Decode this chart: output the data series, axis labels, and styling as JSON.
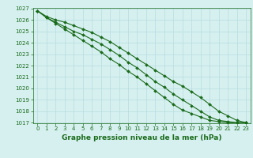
{
  "x": [
    0,
    1,
    2,
    3,
    4,
    5,
    6,
    7,
    8,
    9,
    10,
    11,
    12,
    13,
    14,
    15,
    16,
    17,
    18,
    19,
    20,
    21,
    22,
    23
  ],
  "line_top": [
    1026.8,
    1026.3,
    1026.0,
    1025.8,
    1025.5,
    1025.2,
    1024.9,
    1024.5,
    1024.1,
    1023.6,
    1023.1,
    1022.6,
    1022.1,
    1021.6,
    1021.1,
    1020.6,
    1020.2,
    1019.7,
    1019.2,
    1018.6,
    1018.0,
    1017.6,
    1017.2,
    1017.0
  ],
  "line_mid": [
    1026.8,
    1026.2,
    1025.8,
    1025.4,
    1025.0,
    1024.7,
    1024.3,
    1023.9,
    1023.4,
    1022.9,
    1022.3,
    1021.8,
    1021.2,
    1020.6,
    1020.1,
    1019.5,
    1019.0,
    1018.5,
    1018.0,
    1017.5,
    1017.2,
    1017.1,
    1017.0,
    1017.0
  ],
  "line_bot": [
    1026.8,
    1026.2,
    1025.7,
    1025.2,
    1024.7,
    1024.2,
    1023.7,
    1023.2,
    1022.6,
    1022.1,
    1021.5,
    1021.0,
    1020.4,
    1019.8,
    1019.2,
    1018.6,
    1018.1,
    1017.8,
    1017.5,
    1017.2,
    1017.1,
    1017.0,
    1017.0,
    1017.0
  ],
  "ylim": [
    1017,
    1027
  ],
  "xlim": [
    -0.5,
    23.5
  ],
  "yticks": [
    1017,
    1018,
    1019,
    1020,
    1021,
    1022,
    1023,
    1024,
    1025,
    1026,
    1027
  ],
  "xticks": [
    0,
    1,
    2,
    3,
    4,
    5,
    6,
    7,
    8,
    9,
    10,
    11,
    12,
    13,
    14,
    15,
    16,
    17,
    18,
    19,
    20,
    21,
    22,
    23
  ],
  "line_color": "#1a6b1a",
  "marker": "D",
  "marker_size": 2.0,
  "bg_color": "#d6f0f0",
  "grid_color": "#b0d8d8",
  "xlabel": "Graphe pression niveau de la mer (hPa)",
  "xlabel_color": "#1a6b1a",
  "tick_color": "#1a6b1a",
  "tick_fontsize": 5.0,
  "xlabel_fontsize": 6.5,
  "linewidth": 0.8
}
